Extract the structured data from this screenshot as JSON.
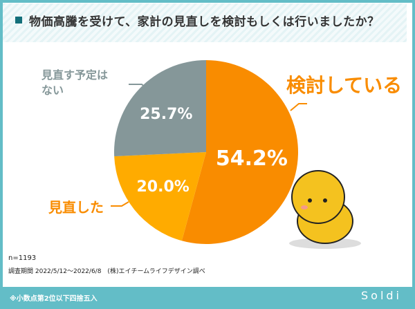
{
  "title": "物価高騰を受けて、家計の見直しを検討もしくは行いましたか？",
  "chart_data": {
    "type": "pie",
    "categories": [
      "検討している",
      "見直した",
      "見直す予定はない"
    ],
    "values": [
      54.2,
      20.0,
      25.7
    ],
    "value_labels": [
      "54.2%",
      "20.0%",
      "25.7%"
    ],
    "colors": [
      "#f98c00",
      "#ffab00",
      "#859799"
    ],
    "label_colors": [
      "#f98c00",
      "#f98c00",
      "#859799"
    ],
    "start": "top",
    "direction": "clockwise"
  },
  "footer": {
    "n": "n=1193",
    "period": "調査期間 2022/5/12〜2022/6/8　(株)エイチームライフデザイン調べ",
    "note": "※小数点第2位以下四捨五入",
    "logo": "Soldi"
  }
}
